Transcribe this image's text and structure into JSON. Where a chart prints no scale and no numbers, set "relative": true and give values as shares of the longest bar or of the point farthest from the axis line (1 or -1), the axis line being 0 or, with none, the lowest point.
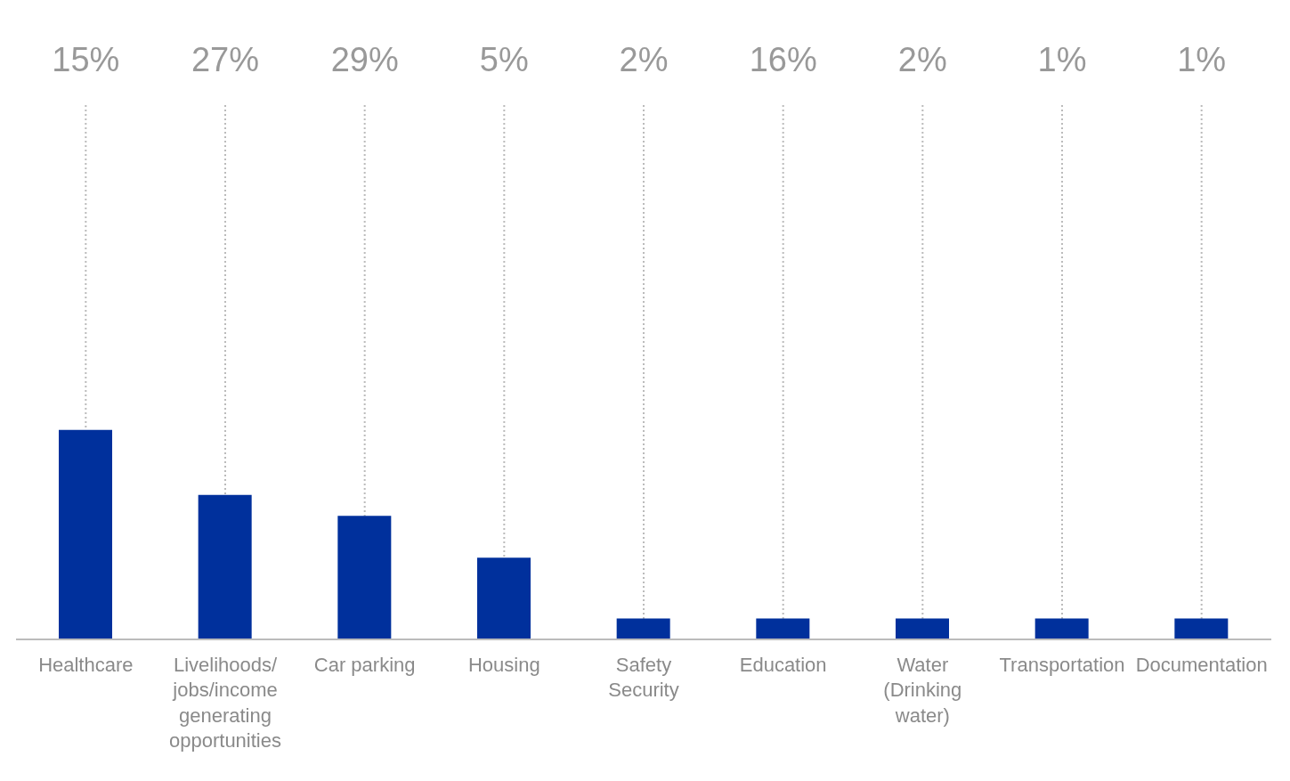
{
  "chart_data": {
    "type": "bar",
    "relative": true,
    "color": "#00309c",
    "grid": "x",
    "categories": [
      "Healthcare",
      "Livelihoods/jobs/income generating opportunities",
      "Car parking",
      "Housing",
      "Safety Security",
      "Education",
      "Water (Drinking water)",
      "Transportation",
      "Documentation"
    ],
    "values": [
      1,
      0.69,
      0.59,
      0.39,
      0.1,
      0.1,
      0.1,
      0.1,
      0.1
    ],
    "annotations": [
      "15%",
      "27%",
      "29%",
      "5%",
      "2%",
      "16%",
      "2%",
      "1%",
      "1%"
    ]
  }
}
